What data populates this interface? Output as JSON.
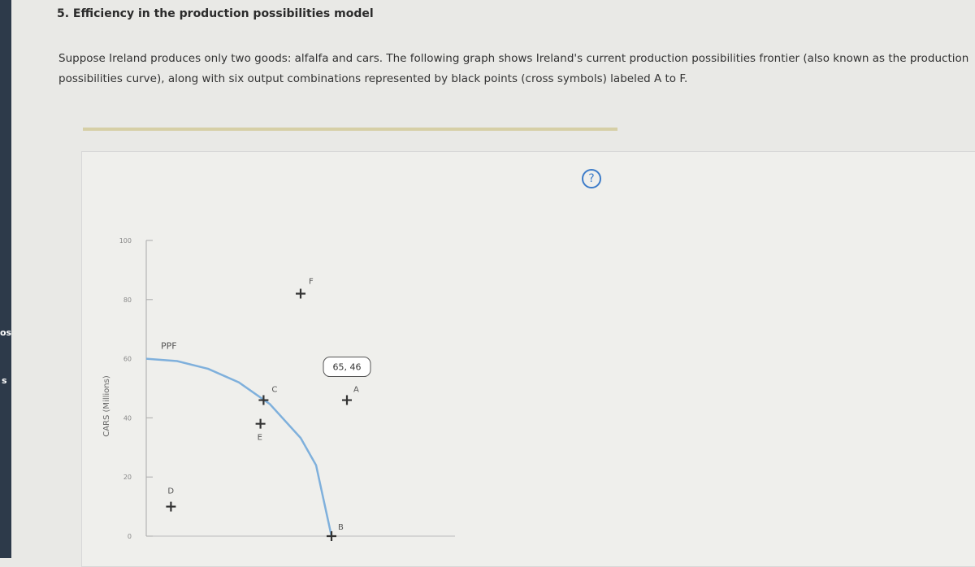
{
  "sidebar": [
    "os",
    "s"
  ],
  "header": {
    "title": "5. Efficiency in the production possibilities model"
  },
  "intro": "Suppose Ireland produces only two goods: alfalfa and cars. The following graph shows Ireland's current production possibilities frontier (also known as the production possibilities curve), along with six output combinations represented by black points (cross symbols) labeled A to F.",
  "help": "?",
  "chart_data": {
    "type": "scatter",
    "y_label": "CARS (Millions)",
    "xlim": [
      0,
      100
    ],
    "ylim": [
      0,
      100
    ],
    "yticks": [
      0,
      20,
      40,
      60,
      80,
      100
    ],
    "series": [
      {
        "name": "PPF",
        "type": "line",
        "color": "#7fb0dc",
        "x": [
          0,
          10,
          20,
          30,
          40,
          50,
          55,
          60
        ],
        "values": [
          60,
          59.2,
          56.6,
          52,
          44.7,
          33.2,
          24,
          0
        ]
      }
    ],
    "points": {
      "color": "#333333",
      "labels": [
        "A",
        "B",
        "C",
        "D",
        "E",
        "F"
      ],
      "x": [
        65,
        60,
        38,
        8,
        37,
        50
      ],
      "values": [
        46,
        0,
        46,
        10,
        38,
        82
      ]
    },
    "tooltip": "65, 46"
  }
}
